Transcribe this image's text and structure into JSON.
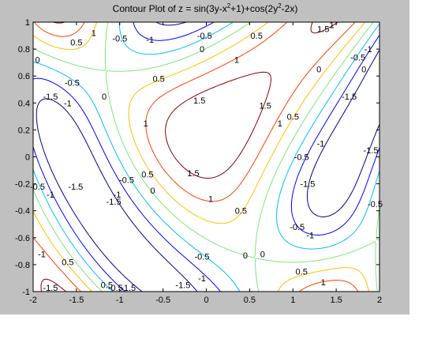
{
  "window": {
    "background": "#c0c0c0",
    "axes_background": "#ffffff"
  },
  "chart_data": {
    "type": "contour",
    "title_prefix": "Contour Plot of z = sin(3y-x",
    "title_sup1": "2",
    "title_mid": "+1)+cos(2y",
    "title_sup2": "2",
    "title_suffix": "-2x)",
    "function": "z = sin(3y-x^2+1)+cos(2y^2-2x)",
    "xlabel": "",
    "ylabel": "",
    "xlim": [
      -2,
      2
    ],
    "ylim": [
      -1,
      1
    ],
    "xticks": [
      -2,
      -1.5,
      -1,
      -0.5,
      0,
      0.5,
      1,
      1.5,
      2
    ],
    "xtick_labels": [
      "-2",
      "-1.5",
      "-1",
      "-0.5",
      "0",
      "0.5",
      "1",
      "1.5",
      "2"
    ],
    "yticks": [
      -1,
      -0.8,
      -0.6,
      -0.4,
      -0.2,
      0,
      0.2,
      0.4,
      0.6,
      0.8,
      1
    ],
    "ytick_labels": [
      "-1",
      "-0.8",
      "-0.6",
      "-0.4",
      "-0.2",
      "0",
      "0.2",
      "0.4",
      "0.6",
      "0.8",
      "1"
    ],
    "grid": false,
    "levels": [
      -1.5,
      -1,
      -0.5,
      0,
      0.5,
      1,
      1.5
    ],
    "level_colors": [
      "#00008b",
      "#0000ff",
      "#00bfff",
      "#7fe57f",
      "#ffbf00",
      "#ff3f00",
      "#8b0000"
    ],
    "contour_labels": [
      {
        "text": "-1.5",
        "x": -1.8,
        "y": 0.45
      },
      {
        "text": "-1",
        "x": -1.6,
        "y": 0.4
      },
      {
        "text": "-0.5",
        "x": -1.55,
        "y": 0.55
      },
      {
        "text": "0",
        "x": -1.95,
        "y": 0.72
      },
      {
        "text": "0.5",
        "x": -1.5,
        "y": 0.85
      },
      {
        "text": "1",
        "x": -1.3,
        "y": 0.92
      },
      {
        "text": "-0.5",
        "x": -1.0,
        "y": 0.88
      },
      {
        "text": "-1",
        "x": -0.65,
        "y": 0.87
      },
      {
        "text": "-0.5",
        "x": -0.02,
        "y": 0.9
      },
      {
        "text": "0",
        "x": -0.05,
        "y": 0.8
      },
      {
        "text": "0.5",
        "x": 0.58,
        "y": 0.9
      },
      {
        "text": "1",
        "x": 0.35,
        "y": 0.72
      },
      {
        "text": "0.5",
        "x": -0.55,
        "y": 0.58
      },
      {
        "text": "0",
        "x": -1.18,
        "y": 0.45
      },
      {
        "text": "1.5",
        "x": -0.08,
        "y": 0.42
      },
      {
        "text": "1",
        "x": -0.7,
        "y": 0.25
      },
      {
        "text": "1.5",
        "x": 0.68,
        "y": 0.38
      },
      {
        "text": "1",
        "x": 0.85,
        "y": 0.25
      },
      {
        "text": "1.5",
        "x": -0.15,
        "y": -0.12
      },
      {
        "text": "1",
        "x": 0.05,
        "y": -0.31
      },
      {
        "text": "0.5",
        "x": -0.68,
        "y": -0.13
      },
      {
        "text": "0",
        "x": -0.62,
        "y": -0.25
      },
      {
        "text": "-0.5",
        "x": -0.92,
        "y": -0.17
      },
      {
        "text": "-1",
        "x": -1.03,
        "y": -0.28
      },
      {
        "text": "-1.5",
        "x": -1.07,
        "y": -0.33
      },
      {
        "text": "-1.5",
        "x": -1.51,
        "y": -0.22
      },
      {
        "text": "-0.5",
        "x": -1.95,
        "y": -0.22
      },
      {
        "text": "-1",
        "x": -1.8,
        "y": -0.28
      },
      {
        "text": "-1",
        "x": -1.9,
        "y": -0.72
      },
      {
        "text": "0.5",
        "x": -1.6,
        "y": -0.78
      },
      {
        "text": "0.5",
        "x": -1.15,
        "y": -0.95
      },
      {
        "text": "-1.5",
        "x": -1.8,
        "y": -0.97
      },
      {
        "text": "-0.5",
        "x": -1.05,
        "y": -0.97
      },
      {
        "text": "-1.5",
        "x": -0.9,
        "y": -0.97
      },
      {
        "text": "0.5",
        "x": 0.4,
        "y": -0.4
      },
      {
        "text": "-0.5",
        "x": -0.05,
        "y": -0.74
      },
      {
        "text": "0",
        "x": 0.45,
        "y": -0.73
      },
      {
        "text": "-1",
        "x": -0.05,
        "y": -0.9
      },
      {
        "text": "-1.5",
        "x": -0.27,
        "y": -0.95
      },
      {
        "text": "0",
        "x": 0.65,
        "y": -0.72
      },
      {
        "text": "0.5",
        "x": 1.1,
        "y": -0.85
      },
      {
        "text": "1",
        "x": 1.35,
        "y": -0.93
      },
      {
        "text": "-0.5",
        "x": 1.05,
        "y": -0.52
      },
      {
        "text": "-1",
        "x": 1.2,
        "y": -0.58
      },
      {
        "text": "-1.5",
        "x": 1.17,
        "y": -0.2
      },
      {
        "text": "-1",
        "x": 1.32,
        "y": 0.1
      },
      {
        "text": "-0.5",
        "x": 1.1,
        "y": 0.0
      },
      {
        "text": "0",
        "x": 1.3,
        "y": 0.65
      },
      {
        "text": "0.5",
        "x": 1.0,
        "y": 0.3
      },
      {
        "text": "1.5",
        "x": 1.35,
        "y": 0.95
      },
      {
        "text": "1",
        "x": 1.45,
        "y": 0.98
      },
      {
        "text": "-0.5",
        "x": 1.75,
        "y": 0.74
      },
      {
        "text": "-1",
        "x": 1.87,
        "y": 0.8
      },
      {
        "text": "-1.5",
        "x": 1.65,
        "y": 0.45
      },
      {
        "text": "-1.5",
        "x": 1.9,
        "y": 0.05
      },
      {
        "text": "-0.5",
        "x": 1.95,
        "y": -0.35
      },
      {
        "text": "0",
        "x": 1.82,
        "y": 0.65
      }
    ]
  }
}
